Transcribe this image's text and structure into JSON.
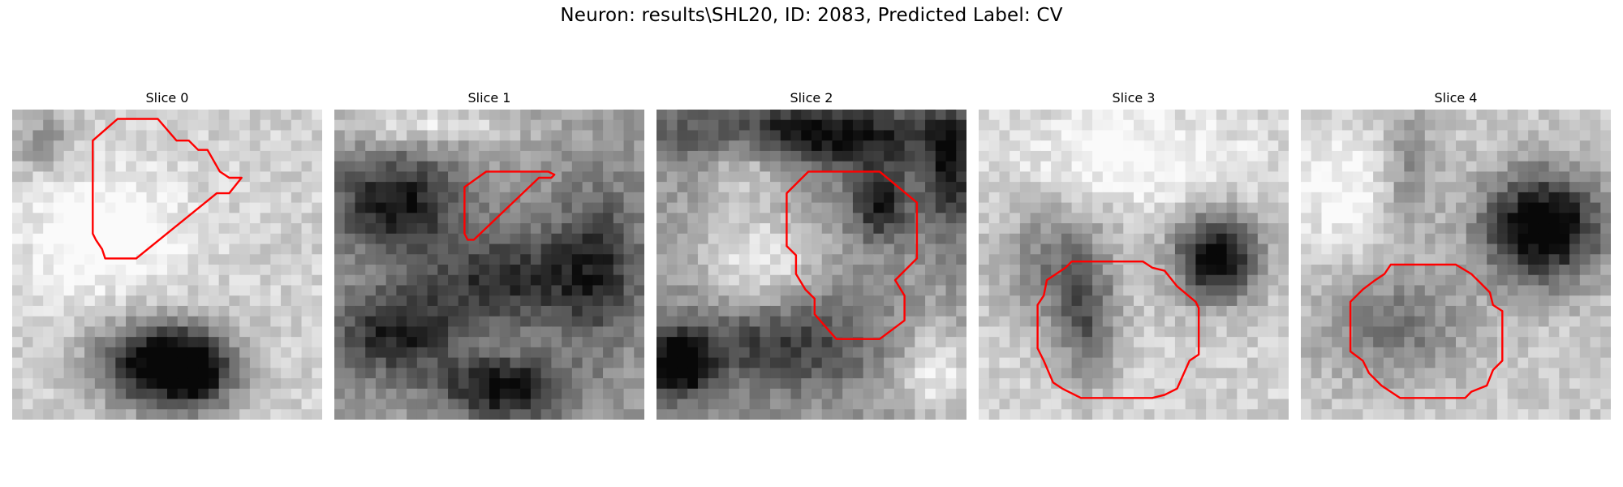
{
  "figure": {
    "title": "Neuron: results\\SHL20, ID: 2083, Predicted Label: CV"
  },
  "panels": [
    {
      "title": "Slice 0",
      "seed": 11,
      "dark_blobs": [
        [
          0.47,
          0.82,
          0.2,
          0.14,
          0.85
        ],
        [
          0.6,
          0.85,
          0.12,
          0.12,
          0.5
        ],
        [
          0.1,
          0.1,
          0.1,
          0.1,
          0.25
        ]
      ],
      "bright_blobs": [
        [
          0.3,
          0.4,
          0.25,
          0.2,
          0.25
        ]
      ],
      "base": 0.82
    },
    {
      "title": "Slice 1",
      "seed": 23,
      "dark_blobs": [
        [
          0.2,
          0.3,
          0.2,
          0.15,
          0.55
        ],
        [
          0.55,
          0.55,
          0.25,
          0.15,
          0.45
        ],
        [
          0.2,
          0.72,
          0.2,
          0.14,
          0.5
        ],
        [
          0.55,
          0.9,
          0.2,
          0.1,
          0.6
        ],
        [
          0.85,
          0.5,
          0.15,
          0.25,
          0.4
        ]
      ],
      "bright_blobs": [
        [
          0.3,
          0.05,
          0.3,
          0.06,
          0.3
        ]
      ],
      "base": 0.62
    },
    {
      "title": "Slice 2",
      "seed": 37,
      "dark_blobs": [
        [
          0.5,
          0.08,
          0.45,
          0.1,
          0.6
        ],
        [
          0.07,
          0.82,
          0.1,
          0.1,
          0.75
        ],
        [
          0.72,
          0.3,
          0.1,
          0.12,
          0.5
        ],
        [
          0.4,
          0.75,
          0.3,
          0.15,
          0.4
        ],
        [
          0.95,
          0.2,
          0.08,
          0.2,
          0.5
        ]
      ],
      "bright_blobs": [
        [
          0.33,
          0.5,
          0.18,
          0.17,
          0.35
        ],
        [
          0.9,
          0.85,
          0.12,
          0.15,
          0.35
        ],
        [
          0.28,
          0.15,
          0.14,
          0.12,
          0.3
        ]
      ],
      "base": 0.6
    },
    {
      "title": "Slice 3",
      "seed": 41,
      "dark_blobs": [
        [
          0.77,
          0.48,
          0.14,
          0.14,
          0.85
        ],
        [
          0.25,
          0.5,
          0.18,
          0.2,
          0.35
        ],
        [
          0.35,
          0.7,
          0.1,
          0.18,
          0.4
        ]
      ],
      "bright_blobs": [
        [
          0.5,
          0.15,
          0.35,
          0.15,
          0.2
        ]
      ],
      "base": 0.82
    },
    {
      "title": "Slice 4",
      "seed": 53,
      "dark_blobs": [
        [
          0.78,
          0.38,
          0.2,
          0.18,
          0.9
        ],
        [
          0.3,
          0.7,
          0.25,
          0.18,
          0.35
        ],
        [
          0.35,
          0.2,
          0.1,
          0.2,
          0.3
        ]
      ],
      "bright_blobs": [
        [
          0.15,
          0.25,
          0.2,
          0.2,
          0.2
        ]
      ],
      "base": 0.8
    }
  ],
  "contours": [
    [
      [
        0.26,
        0.1
      ],
      [
        0.34,
        0.03
      ],
      [
        0.47,
        0.03
      ],
      [
        0.53,
        0.1
      ],
      [
        0.57,
        0.1
      ],
      [
        0.6,
        0.13
      ],
      [
        0.63,
        0.13
      ],
      [
        0.67,
        0.2
      ],
      [
        0.7,
        0.22
      ],
      [
        0.74,
        0.22
      ],
      [
        0.7,
        0.27
      ],
      [
        0.66,
        0.27
      ],
      [
        0.4,
        0.48
      ],
      [
        0.3,
        0.48
      ],
      [
        0.29,
        0.45
      ],
      [
        0.27,
        0.42
      ],
      [
        0.26,
        0.4
      ]
    ],
    [
      [
        0.42,
        0.25
      ],
      [
        0.49,
        0.2
      ],
      [
        0.69,
        0.2
      ],
      [
        0.71,
        0.21
      ],
      [
        0.7,
        0.22
      ],
      [
        0.66,
        0.22
      ],
      [
        0.45,
        0.42
      ],
      [
        0.43,
        0.42
      ],
      [
        0.42,
        0.4
      ]
    ],
    [
      [
        0.42,
        0.27
      ],
      [
        0.49,
        0.2
      ],
      [
        0.72,
        0.2
      ],
      [
        0.84,
        0.3
      ],
      [
        0.84,
        0.48
      ],
      [
        0.77,
        0.55
      ],
      [
        0.8,
        0.6
      ],
      [
        0.8,
        0.68
      ],
      [
        0.72,
        0.74
      ],
      [
        0.58,
        0.74
      ],
      [
        0.51,
        0.66
      ],
      [
        0.51,
        0.61
      ],
      [
        0.48,
        0.58
      ],
      [
        0.45,
        0.53
      ],
      [
        0.45,
        0.47
      ],
      [
        0.42,
        0.44
      ]
    ],
    [
      [
        0.22,
        0.55
      ],
      [
        0.28,
        0.51
      ],
      [
        0.3,
        0.49
      ],
      [
        0.53,
        0.49
      ],
      [
        0.56,
        0.51
      ],
      [
        0.6,
        0.52
      ],
      [
        0.64,
        0.57
      ],
      [
        0.7,
        0.62
      ],
      [
        0.71,
        0.64
      ],
      [
        0.71,
        0.79
      ],
      [
        0.68,
        0.81
      ],
      [
        0.64,
        0.9
      ],
      [
        0.6,
        0.92
      ],
      [
        0.56,
        0.93
      ],
      [
        0.33,
        0.93
      ],
      [
        0.27,
        0.9
      ],
      [
        0.24,
        0.88
      ],
      [
        0.21,
        0.81
      ],
      [
        0.19,
        0.77
      ],
      [
        0.19,
        0.63
      ],
      [
        0.21,
        0.6
      ]
    ],
    [
      [
        0.2,
        0.58
      ],
      [
        0.24,
        0.55
      ],
      [
        0.27,
        0.53
      ],
      [
        0.29,
        0.5
      ],
      [
        0.5,
        0.5
      ],
      [
        0.55,
        0.53
      ],
      [
        0.58,
        0.56
      ],
      [
        0.61,
        0.59
      ],
      [
        0.62,
        0.63
      ],
      [
        0.65,
        0.65
      ],
      [
        0.65,
        0.81
      ],
      [
        0.62,
        0.84
      ],
      [
        0.6,
        0.89
      ],
      [
        0.55,
        0.91
      ],
      [
        0.53,
        0.93
      ],
      [
        0.32,
        0.93
      ],
      [
        0.26,
        0.89
      ],
      [
        0.22,
        0.85
      ],
      [
        0.2,
        0.81
      ],
      [
        0.16,
        0.78
      ],
      [
        0.16,
        0.62
      ],
      [
        0.18,
        0.6
      ]
    ]
  ],
  "contour_color": "#ff0000"
}
